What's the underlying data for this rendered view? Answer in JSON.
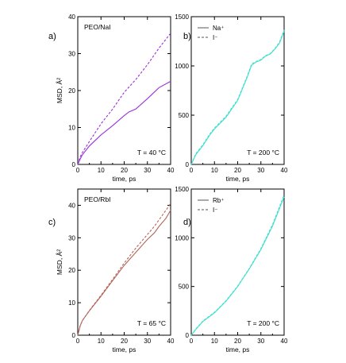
{
  "chart_data": [
    {
      "panel": "a)",
      "type": "line",
      "title": "PEO/NaI",
      "annotation": "T = 40 °C",
      "xlabel": "time, ps",
      "ylabel": "MSD, Å²",
      "xlim": [
        0,
        40
      ],
      "ylim": [
        0,
        40
      ],
      "xticks": [
        0,
        10,
        20,
        30,
        40
      ],
      "yticks": [
        0,
        10,
        20,
        30,
        40
      ],
      "legend": null,
      "series": [
        {
          "name": "Na⁺",
          "color": "#9b30d9",
          "dash": "solid",
          "x": [
            0,
            1,
            2,
            5,
            10,
            15,
            20,
            22,
            25,
            30,
            35,
            40
          ],
          "y": [
            0,
            1.4,
            2.6,
            5,
            8,
            10.5,
            13.2,
            14.2,
            15,
            17.8,
            20.8,
            22.5
          ]
        },
        {
          "name": "I⁻",
          "color": "#9b30d9",
          "dash": "dashed",
          "x": [
            0,
            1,
            2,
            5,
            10,
            15,
            20,
            25,
            30,
            35,
            40
          ],
          "y": [
            0,
            2,
            3.2,
            6.2,
            11,
            15,
            19.5,
            23,
            27,
            31.5,
            35.5
          ]
        }
      ]
    },
    {
      "panel": "b)",
      "type": "line",
      "title": "",
      "annotation": "T = 200 °C",
      "xlabel": "time, ps",
      "ylabel": "",
      "xlim": [
        0,
        40
      ],
      "ylim": [
        0,
        1500
      ],
      "xticks": [
        0,
        10,
        20,
        30,
        40
      ],
      "yticks": [
        0,
        500,
        1000,
        1500
      ],
      "legend": {
        "position": "top-left",
        "entries": [
          {
            "label": "Na⁺",
            "dash": "solid"
          },
          {
            "label": "I⁻",
            "dash": "dashed"
          }
        ]
      },
      "series": [
        {
          "name": "Na⁺",
          "color": "#40e0d0",
          "dash": "solid",
          "x": [
            0,
            2,
            5,
            8,
            10,
            15,
            20,
            24,
            26,
            28,
            30,
            32,
            34,
            36,
            38,
            40
          ],
          "y": [
            0,
            100,
            190,
            300,
            360,
            480,
            650,
            880,
            1010,
            1040,
            1060,
            1100,
            1120,
            1170,
            1230,
            1350
          ]
        },
        {
          "name": "I⁻",
          "color": "#40e0d0",
          "dash": "dashed",
          "x": [
            0,
            2,
            5,
            8,
            10,
            15,
            20,
            24,
            26,
            28,
            30,
            32,
            34,
            36,
            38,
            40
          ],
          "y": [
            0,
            110,
            200,
            310,
            370,
            490,
            660,
            890,
            1020,
            1045,
            1065,
            1105,
            1125,
            1175,
            1240,
            1365
          ]
        }
      ]
    },
    {
      "panel": "c)",
      "type": "line",
      "title": "PEO/RbI",
      "annotation": "T = 65 °C",
      "xlabel": "time, ps",
      "ylabel": "MSD, Å²",
      "xlim": [
        0,
        40
      ],
      "ylim": [
        0,
        45
      ],
      "xticks": [
        0,
        10,
        20,
        30,
        40
      ],
      "yticks": [
        0,
        10,
        20,
        30,
        40
      ],
      "legend": null,
      "series": [
        {
          "name": "Rb⁺",
          "color": "#b5645a",
          "dash": "solid",
          "x": [
            0,
            1,
            2,
            5,
            10,
            15,
            20,
            25,
            30,
            33,
            35,
            38,
            40
          ],
          "y": [
            0,
            2.8,
            4.5,
            7.5,
            12,
            16.8,
            21.5,
            25.5,
            29.5,
            31.5,
            33.5,
            36,
            38.5
          ]
        },
        {
          "name": "I⁻",
          "color": "#b5645a",
          "dash": "dashed",
          "x": [
            0,
            1,
            2,
            5,
            10,
            15,
            20,
            25,
            30,
            33,
            35,
            38,
            40
          ],
          "y": [
            0,
            2.8,
            4.5,
            7.6,
            12.3,
            17.2,
            22.2,
            26.8,
            31,
            33.5,
            35.5,
            38.5,
            40.5
          ]
        }
      ]
    },
    {
      "panel": "d)",
      "type": "line",
      "title": "",
      "annotation": "T = 200 °C",
      "xlabel": "time, ps",
      "ylabel": "",
      "xlim": [
        0,
        40
      ],
      "ylim": [
        0,
        1500
      ],
      "xticks": [
        0,
        10,
        20,
        30,
        40
      ],
      "yticks": [
        0,
        500,
        1000,
        1500
      ],
      "legend": {
        "position": "top-left",
        "entries": [
          {
            "label": "Rb⁺",
            "dash": "solid"
          },
          {
            "label": "I⁻",
            "dash": "dashed"
          }
        ]
      },
      "series": [
        {
          "name": "Rb⁺",
          "color": "#40e0d0",
          "dash": "solid",
          "x": [
            0,
            2,
            5,
            10,
            15,
            20,
            25,
            30,
            35,
            40
          ],
          "y": [
            0,
            60,
            140,
            230,
            350,
            500,
            680,
            880,
            1120,
            1420
          ]
        },
        {
          "name": "I⁻",
          "color": "#40e0d0",
          "dash": "dashed",
          "x": [
            0,
            2,
            5,
            10,
            15,
            20,
            25,
            30,
            35,
            40
          ],
          "y": [
            0,
            65,
            145,
            235,
            355,
            505,
            685,
            890,
            1135,
            1440
          ]
        }
      ]
    }
  ]
}
